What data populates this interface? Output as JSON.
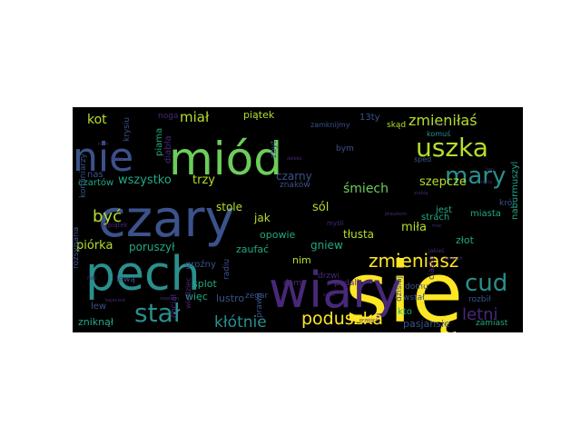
{
  "palette": {
    "background": "#000000",
    "yellow": "#fde725",
    "green": "#6ccd5a",
    "lime": "#b5de2b",
    "teal": "#22a884",
    "cyan": "#2a8f8d",
    "blue": "#3b528b",
    "purple": "#482878",
    "violet": "#440154"
  },
  "words": [
    {
      "text": "się",
      "color": "yellow"
    },
    {
      "text": "czary",
      "color": "blue"
    },
    {
      "text": "pech",
      "color": "cyan"
    },
    {
      "text": "wiary",
      "color": "purple"
    },
    {
      "text": "nie",
      "color": "blue"
    },
    {
      "text": "miód",
      "color": "green"
    },
    {
      "text": "uszka",
      "color": "lime"
    },
    {
      "text": "mary",
      "color": "cyan"
    },
    {
      "text": "zmieniłaś",
      "color": "lime"
    },
    {
      "text": "stał",
      "color": "cyan"
    },
    {
      "text": "cud",
      "color": "cyan"
    },
    {
      "text": "zmieniasz",
      "color": "yellow"
    },
    {
      "text": "poduszka",
      "color": "yellow"
    },
    {
      "text": "letni",
      "color": "purple"
    },
    {
      "text": "kłótnie",
      "color": "cyan"
    },
    {
      "text": "być",
      "color": "lime"
    },
    {
      "text": "kot",
      "color": "lime"
    },
    {
      "text": "miał",
      "color": "lime"
    },
    {
      "text": "wszystko",
      "color": "teal"
    },
    {
      "text": "trzy",
      "color": "lime"
    },
    {
      "text": "śmiech",
      "color": "green"
    },
    {
      "text": "szepcze",
      "color": "lime"
    },
    {
      "text": "stole",
      "color": "lime"
    },
    {
      "text": "czarny",
      "color": "blue"
    },
    {
      "text": "piątek",
      "color": "lime"
    },
    {
      "text": "13ty",
      "color": "blue"
    },
    {
      "text": "komuś",
      "color": "cyan"
    },
    {
      "text": "skąd",
      "color": "lime"
    },
    {
      "text": "strach",
      "color": "teal"
    },
    {
      "text": "miasta",
      "color": "teal"
    },
    {
      "text": "sól",
      "color": "lime"
    },
    {
      "text": "jak",
      "color": "lime"
    },
    {
      "text": "miła",
      "color": "lime"
    },
    {
      "text": "jest",
      "color": "teal"
    },
    {
      "text": "opowie",
      "color": "teal"
    },
    {
      "text": "tłusta",
      "color": "lime"
    },
    {
      "text": "gniew",
      "color": "teal"
    },
    {
      "text": "złot",
      "color": "teal"
    },
    {
      "text": "naburmuszyl",
      "color": "teal"
    },
    {
      "text": "piórka",
      "color": "lime"
    },
    {
      "text": "poruszył",
      "color": "teal"
    },
    {
      "text": "groźny",
      "color": "blue"
    },
    {
      "text": "zaufać",
      "color": "teal"
    },
    {
      "text": "nim",
      "color": "lime"
    },
    {
      "text": "splot",
      "color": "teal"
    },
    {
      "text": "więc",
      "color": "teal"
    },
    {
      "text": "lustro",
      "color": "blue"
    },
    {
      "text": "zegar",
      "color": "blue"
    },
    {
      "text": "dzisiaj",
      "color": "blue"
    },
    {
      "text": "kto",
      "color": "teal"
    },
    {
      "text": "pasjansie",
      "color": "blue"
    },
    {
      "text": "zamiast",
      "color": "teal"
    },
    {
      "text": "zniknął",
      "color": "teal"
    },
    {
      "text": "lew",
      "color": "blue"
    },
    {
      "text": "nas",
      "color": "blue"
    },
    {
      "text": "czartów",
      "color": "teal"
    },
    {
      "text": "rozsypana",
      "color": "blue"
    },
    {
      "text": "kominiarzy",
      "color": "blue"
    },
    {
      "text": "krysiu",
      "color": "blue"
    },
    {
      "text": "piama",
      "color": "teal"
    },
    {
      "text": "noga",
      "color": "purple"
    },
    {
      "text": "diabła",
      "color": "purple"
    },
    {
      "text": "chciał",
      "color": "purple"
    },
    {
      "text": "wiedziec",
      "color": "purple"
    },
    {
      "text": "prawa",
      "color": "blue"
    },
    {
      "text": "radiu",
      "color": "blue"
    },
    {
      "text": "zbyt",
      "color": "blue"
    },
    {
      "text": "zamknijmy",
      "color": "blue"
    },
    {
      "text": "bym",
      "color": "blue"
    },
    {
      "text": "sped",
      "color": "blue"
    },
    {
      "text": "znaków",
      "color": "blue"
    },
    {
      "text": "damy",
      "color": "purple"
    },
    {
      "text": "drzwi",
      "color": "purple"
    },
    {
      "text": "podali",
      "color": "purple"
    },
    {
      "text": "domu",
      "color": "blue"
    },
    {
      "text": "wstał",
      "color": "blue"
    },
    {
      "text": "ciasto",
      "color": "purple"
    },
    {
      "text": "rozbił",
      "color": "blue"
    },
    {
      "text": "król",
      "color": "blue"
    },
    {
      "text": "lewą",
      "color": "blue"
    },
    {
      "text": "13piątek",
      "color": "purple"
    },
    {
      "text": "noc",
      "color": "purple"
    },
    {
      "text": "myśli",
      "color": "purple"
    },
    {
      "text": "jakieś",
      "color": "purple"
    },
    {
      "text": "ptaszkom",
      "color": "purple"
    },
    {
      "text": "zrobią",
      "color": "purple"
    },
    {
      "text": "bajeczce",
      "color": "purple"
    },
    {
      "text": "szeptem",
      "color": "purple"
    },
    {
      "text": "daleko",
      "color": "purple"
    },
    {
      "text": "ramy",
      "color": "purple"
    },
    {
      "text": "nagą",
      "color": "purple"
    },
    {
      "text": "łańcuch",
      "color": "purple"
    },
    {
      "text": "mróz",
      "color": "purple"
    },
    {
      "text": "oczy",
      "color": "purple"
    },
    {
      "text": "sześć",
      "color": "purple"
    },
    {
      "text": "ruch",
      "color": "purple"
    },
    {
      "text": "kroku",
      "color": "purple"
    },
    {
      "text": "ten",
      "color": "purple"
    },
    {
      "text": "przejście",
      "color": "purple"
    },
    {
      "text": "moc",
      "color": "purple"
    }
  ]
}
